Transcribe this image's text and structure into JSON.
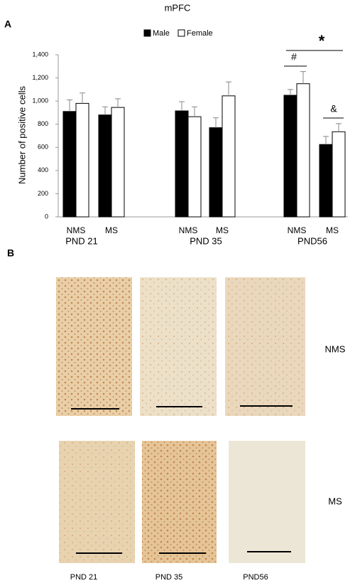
{
  "chart_data": {
    "type": "bar",
    "title": "mPFC",
    "ylabel": "Number of positive cells",
    "categories": [
      "NMS",
      "MS",
      "NMS",
      "MS",
      "NMS",
      "MS"
    ],
    "groups": [
      "PND 21",
      "PND 35",
      "PND56"
    ],
    "series": [
      {
        "name": "Male",
        "color": "#000000",
        "values": [
          910,
          880,
          915,
          770,
          1050,
          625
        ],
        "errors": [
          100,
          70,
          80,
          85,
          50,
          70
        ]
      },
      {
        "name": "Female",
        "color": "#ffffff",
        "values": [
          980,
          945,
          865,
          1045,
          1150,
          735
        ],
        "errors": [
          90,
          75,
          85,
          120,
          105,
          70
        ]
      }
    ],
    "ylim": [
      0,
      1400
    ],
    "yticks": [
      0,
      200,
      400,
      600,
      800,
      {
        "value": 1000,
        "label": "1,000"
      },
      {
        "value": 1200,
        "label": "1,200"
      },
      {
        "value": 1400,
        "label": "1,400"
      }
    ],
    "annotations": [
      "#",
      "&",
      "*"
    ]
  },
  "panel_labels": [
    "A",
    "B"
  ],
  "micrographs": {
    "columns": [
      "PND 21",
      "PND 35",
      "PND56"
    ],
    "rows": [
      "NMS",
      "MS"
    ]
  }
}
